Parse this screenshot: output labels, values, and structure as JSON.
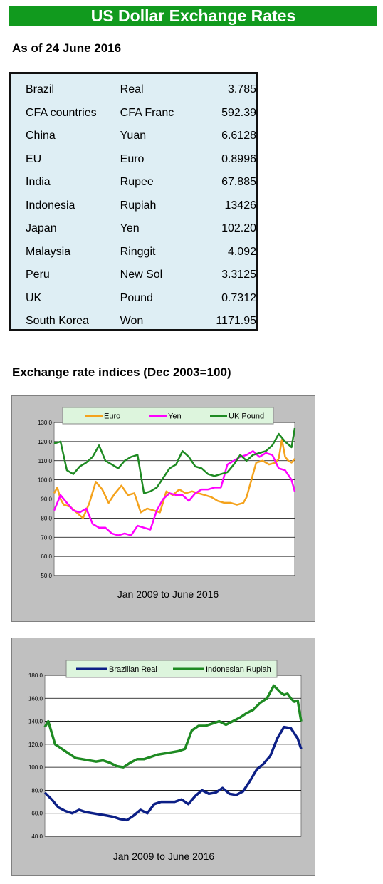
{
  "header": {
    "title": "US Dollar Exchange Rates",
    "as_of": "As of 24 June 2016"
  },
  "rates": [
    {
      "country": "Brazil",
      "currency": "Real",
      "value": "3.785"
    },
    {
      "country": "CFA countries",
      "currency": "CFA Franc",
      "value": "592.39"
    },
    {
      "country": "China",
      "currency": "Yuan",
      "value": "6.6128"
    },
    {
      "country": "EU",
      "currency": "Euro",
      "value": "0.8996"
    },
    {
      "country": "India",
      "currency": "Rupee",
      "value": "67.885"
    },
    {
      "country": "Indonesia",
      "currency": "Rupiah",
      "value": "13426"
    },
    {
      "country": "Japan",
      "currency": "Yen",
      "value": "102.20"
    },
    {
      "country": "Malaysia",
      "currency": "Ringgit",
      "value": "4.092"
    },
    {
      "country": "Peru",
      "currency": "New Sol",
      "value": "3.3125"
    },
    {
      "country": "UK",
      "currency": "Pound",
      "value": "0.7312"
    },
    {
      "country": "South Korea",
      "currency": "Won",
      "value": "1171.95"
    }
  ],
  "indices_heading": "Exchange rate indices (Dec 2003=100)",
  "chart_data": [
    {
      "type": "line",
      "xlabel": "Jan 2009 to June 2016",
      "ylim": [
        50,
        130
      ],
      "yticks": [
        "50.0",
        "60.0",
        "70.0",
        "80.0",
        "90.0",
        "100.0",
        "110.0",
        "120.0",
        "130.0"
      ],
      "grid": true,
      "legend_position": "top",
      "x_range": [
        "2009-01",
        "2016-06"
      ],
      "series": [
        {
          "name": "Euro",
          "color": "#f4a21c",
          "x": [
            2009.0,
            2009.1,
            2009.2,
            2009.3,
            2009.5,
            2009.7,
            2009.9,
            2010.1,
            2010.3,
            2010.5,
            2010.7,
            2010.9,
            2011.1,
            2011.3,
            2011.5,
            2011.7,
            2011.9,
            2012.1,
            2012.3,
            2012.5,
            2012.7,
            2012.9,
            2013.1,
            2013.3,
            2013.5,
            2013.7,
            2013.9,
            2014.1,
            2014.3,
            2014.5,
            2014.7,
            2014.9,
            2015.0,
            2015.1,
            2015.3,
            2015.5,
            2015.7,
            2015.9,
            2016.0,
            2016.1,
            2016.2,
            2016.3,
            2016.4,
            2016.5
          ],
          "values": [
            93,
            96,
            90,
            87,
            86,
            83,
            80,
            88,
            99,
            95,
            88,
            93,
            97,
            92,
            93,
            83,
            85,
            84,
            83,
            94,
            92,
            95,
            93,
            94,
            93,
            92,
            91,
            89,
            88,
            88,
            87,
            88,
            91,
            97,
            109,
            110,
            108,
            109,
            111,
            121,
            112,
            110,
            109,
            111
          ]
        },
        {
          "name": "Yen",
          "color": "#ff00ff",
          "x": [
            2009.0,
            2009.2,
            2009.4,
            2009.6,
            2009.8,
            2010.0,
            2010.2,
            2010.4,
            2010.6,
            2010.8,
            2011.0,
            2011.2,
            2011.4,
            2011.6,
            2011.8,
            2012.0,
            2012.2,
            2012.4,
            2012.6,
            2012.8,
            2013.0,
            2013.2,
            2013.4,
            2013.6,
            2013.8,
            2014.0,
            2014.2,
            2014.4,
            2014.6,
            2014.8,
            2015.0,
            2015.2,
            2015.4,
            2015.6,
            2015.8,
            2016.0,
            2016.2,
            2016.4,
            2016.5
          ],
          "values": [
            84,
            92,
            88,
            84,
            83,
            85,
            77,
            75,
            75,
            72,
            71,
            72,
            71,
            76,
            75,
            74,
            84,
            90,
            93,
            92,
            92,
            89,
            93,
            95,
            95,
            96,
            96,
            108,
            110,
            112,
            113,
            115,
            112,
            114,
            113,
            106,
            105,
            100,
            94
          ]
        },
        {
          "name": "UK Pound",
          "color": "#1e8a22",
          "x": [
            2009.0,
            2009.2,
            2009.4,
            2009.6,
            2009.8,
            2010.0,
            2010.2,
            2010.4,
            2010.6,
            2010.8,
            2011.0,
            2011.2,
            2011.4,
            2011.6,
            2011.8,
            2012.0,
            2012.2,
            2012.4,
            2012.6,
            2012.8,
            2013.0,
            2013.2,
            2013.4,
            2013.6,
            2013.8,
            2014.0,
            2014.2,
            2014.4,
            2014.6,
            2014.8,
            2015.0,
            2015.2,
            2015.4,
            2015.6,
            2015.8,
            2016.0,
            2016.2,
            2016.4,
            2016.5
          ],
          "values": [
            119,
            120,
            105,
            103,
            107,
            109,
            112,
            118,
            110,
            108,
            106,
            110,
            112,
            113,
            93,
            94,
            96,
            101,
            106,
            108,
            115,
            112,
            107,
            106,
            103,
            102,
            103,
            104,
            108,
            113,
            110,
            113,
            114,
            115,
            118,
            124,
            120,
            117,
            127
          ]
        }
      ]
    },
    {
      "type": "line",
      "xlabel": "Jan 2009 to June 2016",
      "ylim": [
        40,
        180
      ],
      "yticks": [
        "40.0",
        "60.0",
        "80.0",
        "100.0",
        "120.0",
        "140.0",
        "160.0",
        "180.0"
      ],
      "grid": true,
      "legend_position": "top",
      "x_range": [
        "2009-01",
        "2016-06"
      ],
      "series": [
        {
          "name": "Brazilian Real",
          "color": "#0c1f86",
          "x": [
            2009.0,
            2009.2,
            2009.4,
            2009.6,
            2009.8,
            2010.0,
            2010.2,
            2010.4,
            2010.6,
            2010.8,
            2011.0,
            2011.2,
            2011.4,
            2011.6,
            2011.8,
            2012.0,
            2012.2,
            2012.4,
            2012.6,
            2012.8,
            2013.0,
            2013.2,
            2013.4,
            2013.6,
            2013.8,
            2014.0,
            2014.2,
            2014.4,
            2014.6,
            2014.8,
            2015.0,
            2015.2,
            2015.4,
            2015.6,
            2015.8,
            2016.0,
            2016.2,
            2016.4,
            2016.5
          ],
          "values": [
            78,
            72,
            65,
            62,
            60,
            63,
            61,
            60,
            59,
            58,
            57,
            55,
            54,
            58,
            63,
            60,
            68,
            70,
            70,
            70,
            72,
            68,
            75,
            80,
            77,
            78,
            82,
            77,
            76,
            79,
            88,
            98,
            103,
            110,
            125,
            135,
            134,
            125,
            116
          ]
        },
        {
          "name": "Indonesian Rupiah",
          "color": "#1e8a22",
          "x": [
            2009.0,
            2009.1,
            2009.3,
            2009.5,
            2009.7,
            2009.9,
            2010.1,
            2010.3,
            2010.5,
            2010.7,
            2010.9,
            2011.1,
            2011.3,
            2011.5,
            2011.7,
            2011.9,
            2012.1,
            2012.3,
            2012.5,
            2012.7,
            2012.9,
            2013.1,
            2013.3,
            2013.5,
            2013.7,
            2013.9,
            2014.1,
            2014.3,
            2014.5,
            2014.7,
            2014.9,
            2015.1,
            2015.3,
            2015.5,
            2015.7,
            2015.9,
            2016.0,
            2016.1,
            2016.2,
            2016.3,
            2016.4,
            2016.5
          ],
          "values": [
            135,
            140,
            120,
            116,
            112,
            108,
            107,
            106,
            105,
            106,
            104,
            101,
            100,
            104,
            107,
            107,
            109,
            111,
            112,
            113,
            114,
            116,
            132,
            136,
            136,
            138,
            140,
            137,
            140,
            143,
            147,
            150,
            156,
            160,
            171,
            165,
            163,
            164,
            160,
            157,
            158,
            140
          ]
        }
      ]
    }
  ]
}
